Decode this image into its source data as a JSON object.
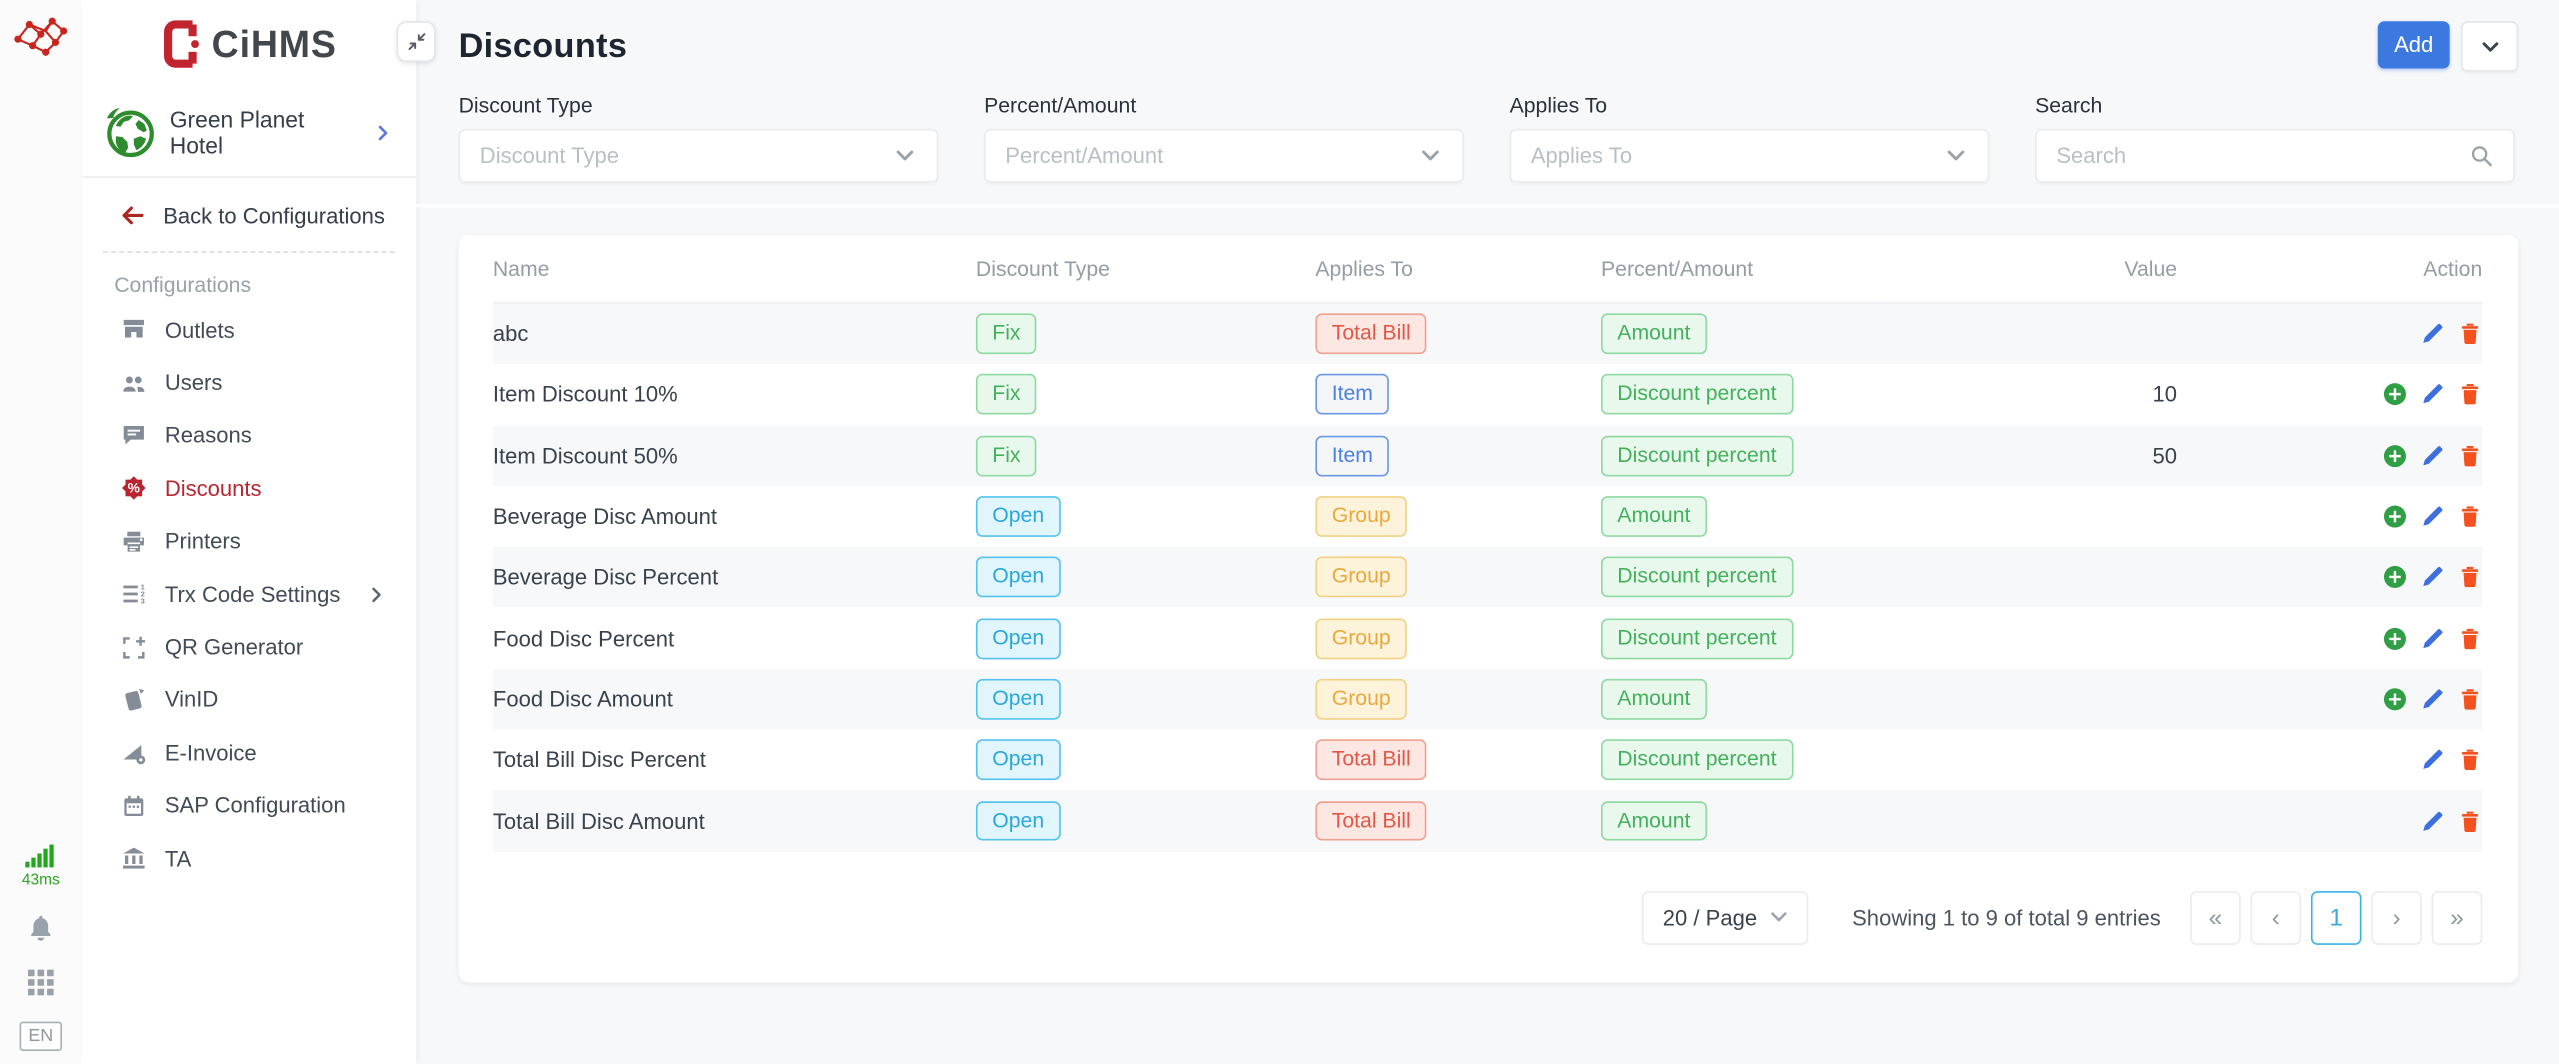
{
  "brand": {
    "logo_text": "CiHMS",
    "logo_icon": "door",
    "network_icon": "network"
  },
  "rail": {
    "latency": "43ms",
    "latency_icon": "signal-bars",
    "bell_icon": "bell",
    "apps_icon": "apps-grid",
    "language": "EN"
  },
  "sidebar": {
    "hotel": {
      "name": "Green Planet Hotel",
      "icon": "globe",
      "chevron": "chevron-right"
    },
    "back_label": "Back to Configurations",
    "back_icon": "arrow-left",
    "section_label": "Configurations",
    "items": [
      {
        "label": "Outlets",
        "icon": "store",
        "active": false,
        "chevron": false
      },
      {
        "label": "Users",
        "icon": "users",
        "active": false,
        "chevron": false
      },
      {
        "label": "Reasons",
        "icon": "comment",
        "active": false,
        "chevron": false
      },
      {
        "label": "Discounts",
        "icon": "discount-seal",
        "active": true,
        "chevron": false
      },
      {
        "label": "Printers",
        "icon": "printer",
        "active": false,
        "chevron": false
      },
      {
        "label": "Trx Code Settings",
        "icon": "list-numbered",
        "active": false,
        "chevron": true
      },
      {
        "label": "QR Generator",
        "icon": "qr-add",
        "active": false,
        "chevron": false
      },
      {
        "label": "VinID",
        "icon": "card",
        "active": false,
        "chevron": false
      },
      {
        "label": "E-Invoice",
        "icon": "invoice-gear",
        "active": false,
        "chevron": false
      },
      {
        "label": "SAP Configuration",
        "icon": "calendar",
        "active": false,
        "chevron": false
      },
      {
        "label": "TA",
        "icon": "bank",
        "active": false,
        "chevron": false
      }
    ]
  },
  "header": {
    "title": "Discounts",
    "add_label": "Add",
    "add_color": "#3b79e1",
    "caret_icon": "chevron-down",
    "collapse_icon": "collapse-arrows"
  },
  "filters": [
    {
      "label": "Discount Type",
      "placeholder": "Discount Type",
      "type": "select",
      "icon": "chevron-down"
    },
    {
      "label": "Percent/Amount",
      "placeholder": "Percent/Amount",
      "type": "select",
      "icon": "chevron-down"
    },
    {
      "label": "Applies To",
      "placeholder": "Applies To",
      "type": "select",
      "icon": "chevron-down"
    },
    {
      "label": "Search",
      "placeholder": "Search",
      "type": "search",
      "icon": "search"
    }
  ],
  "table": {
    "columns": [
      "Name",
      "Discount Type",
      "Applies To",
      "Percent/Amount",
      "Value",
      "Action"
    ],
    "rows": [
      {
        "name": "abc",
        "discount_type": "Fix",
        "applies_to": "Total Bill",
        "percent_amount": "Amount",
        "value": "",
        "actions": [
          "edit",
          "delete"
        ]
      },
      {
        "name": "Item Discount 10%",
        "discount_type": "Fix",
        "applies_to": "Item",
        "percent_amount": "Discount percent",
        "value": "10",
        "actions": [
          "add",
          "edit",
          "delete"
        ]
      },
      {
        "name": "Item Discount 50%",
        "discount_type": "Fix",
        "applies_to": "Item",
        "percent_amount": "Discount percent",
        "value": "50",
        "actions": [
          "add",
          "edit",
          "delete"
        ]
      },
      {
        "name": "Beverage Disc Amount",
        "discount_type": "Open",
        "applies_to": "Group",
        "percent_amount": "Amount",
        "value": "",
        "actions": [
          "add",
          "edit",
          "delete"
        ]
      },
      {
        "name": "Beverage Disc Percent",
        "discount_type": "Open",
        "applies_to": "Group",
        "percent_amount": "Discount percent",
        "value": "",
        "actions": [
          "add",
          "edit",
          "delete"
        ]
      },
      {
        "name": "Food Disc Percent",
        "discount_type": "Open",
        "applies_to": "Group",
        "percent_amount": "Discount percent",
        "value": "",
        "actions": [
          "add",
          "edit",
          "delete"
        ]
      },
      {
        "name": "Food Disc Amount",
        "discount_type": "Open",
        "applies_to": "Group",
        "percent_amount": "Amount",
        "value": "",
        "actions": [
          "add",
          "edit",
          "delete"
        ]
      },
      {
        "name": "Total Bill Disc Percent",
        "discount_type": "Open",
        "applies_to": "Total Bill",
        "percent_amount": "Discount percent",
        "value": "",
        "actions": [
          "edit",
          "delete"
        ]
      },
      {
        "name": "Total Bill Disc Amount",
        "discount_type": "Open",
        "applies_to": "Total Bill",
        "percent_amount": "Amount",
        "value": "",
        "actions": [
          "edit",
          "delete"
        ]
      }
    ],
    "badge_styles": {
      "Fix": "green",
      "Open": "cyan",
      "Total Bill": "red",
      "Item": "blue",
      "Group": "yellow",
      "Amount": "green",
      "Discount percent": "green"
    },
    "action_icons": {
      "add": "plus-circle",
      "edit": "pencil",
      "delete": "trash"
    },
    "action_colors": {
      "add": "#2f9e44",
      "edit": "#3d6fdf",
      "delete": "#f4511e"
    }
  },
  "pagination": {
    "page_size": "20 / Page",
    "summary": "Showing 1 to 9 of total 9 entries",
    "first": "«",
    "prev": "‹",
    "current_page": "1",
    "next": "›",
    "last": "»",
    "active_color": "#39a9e0"
  }
}
